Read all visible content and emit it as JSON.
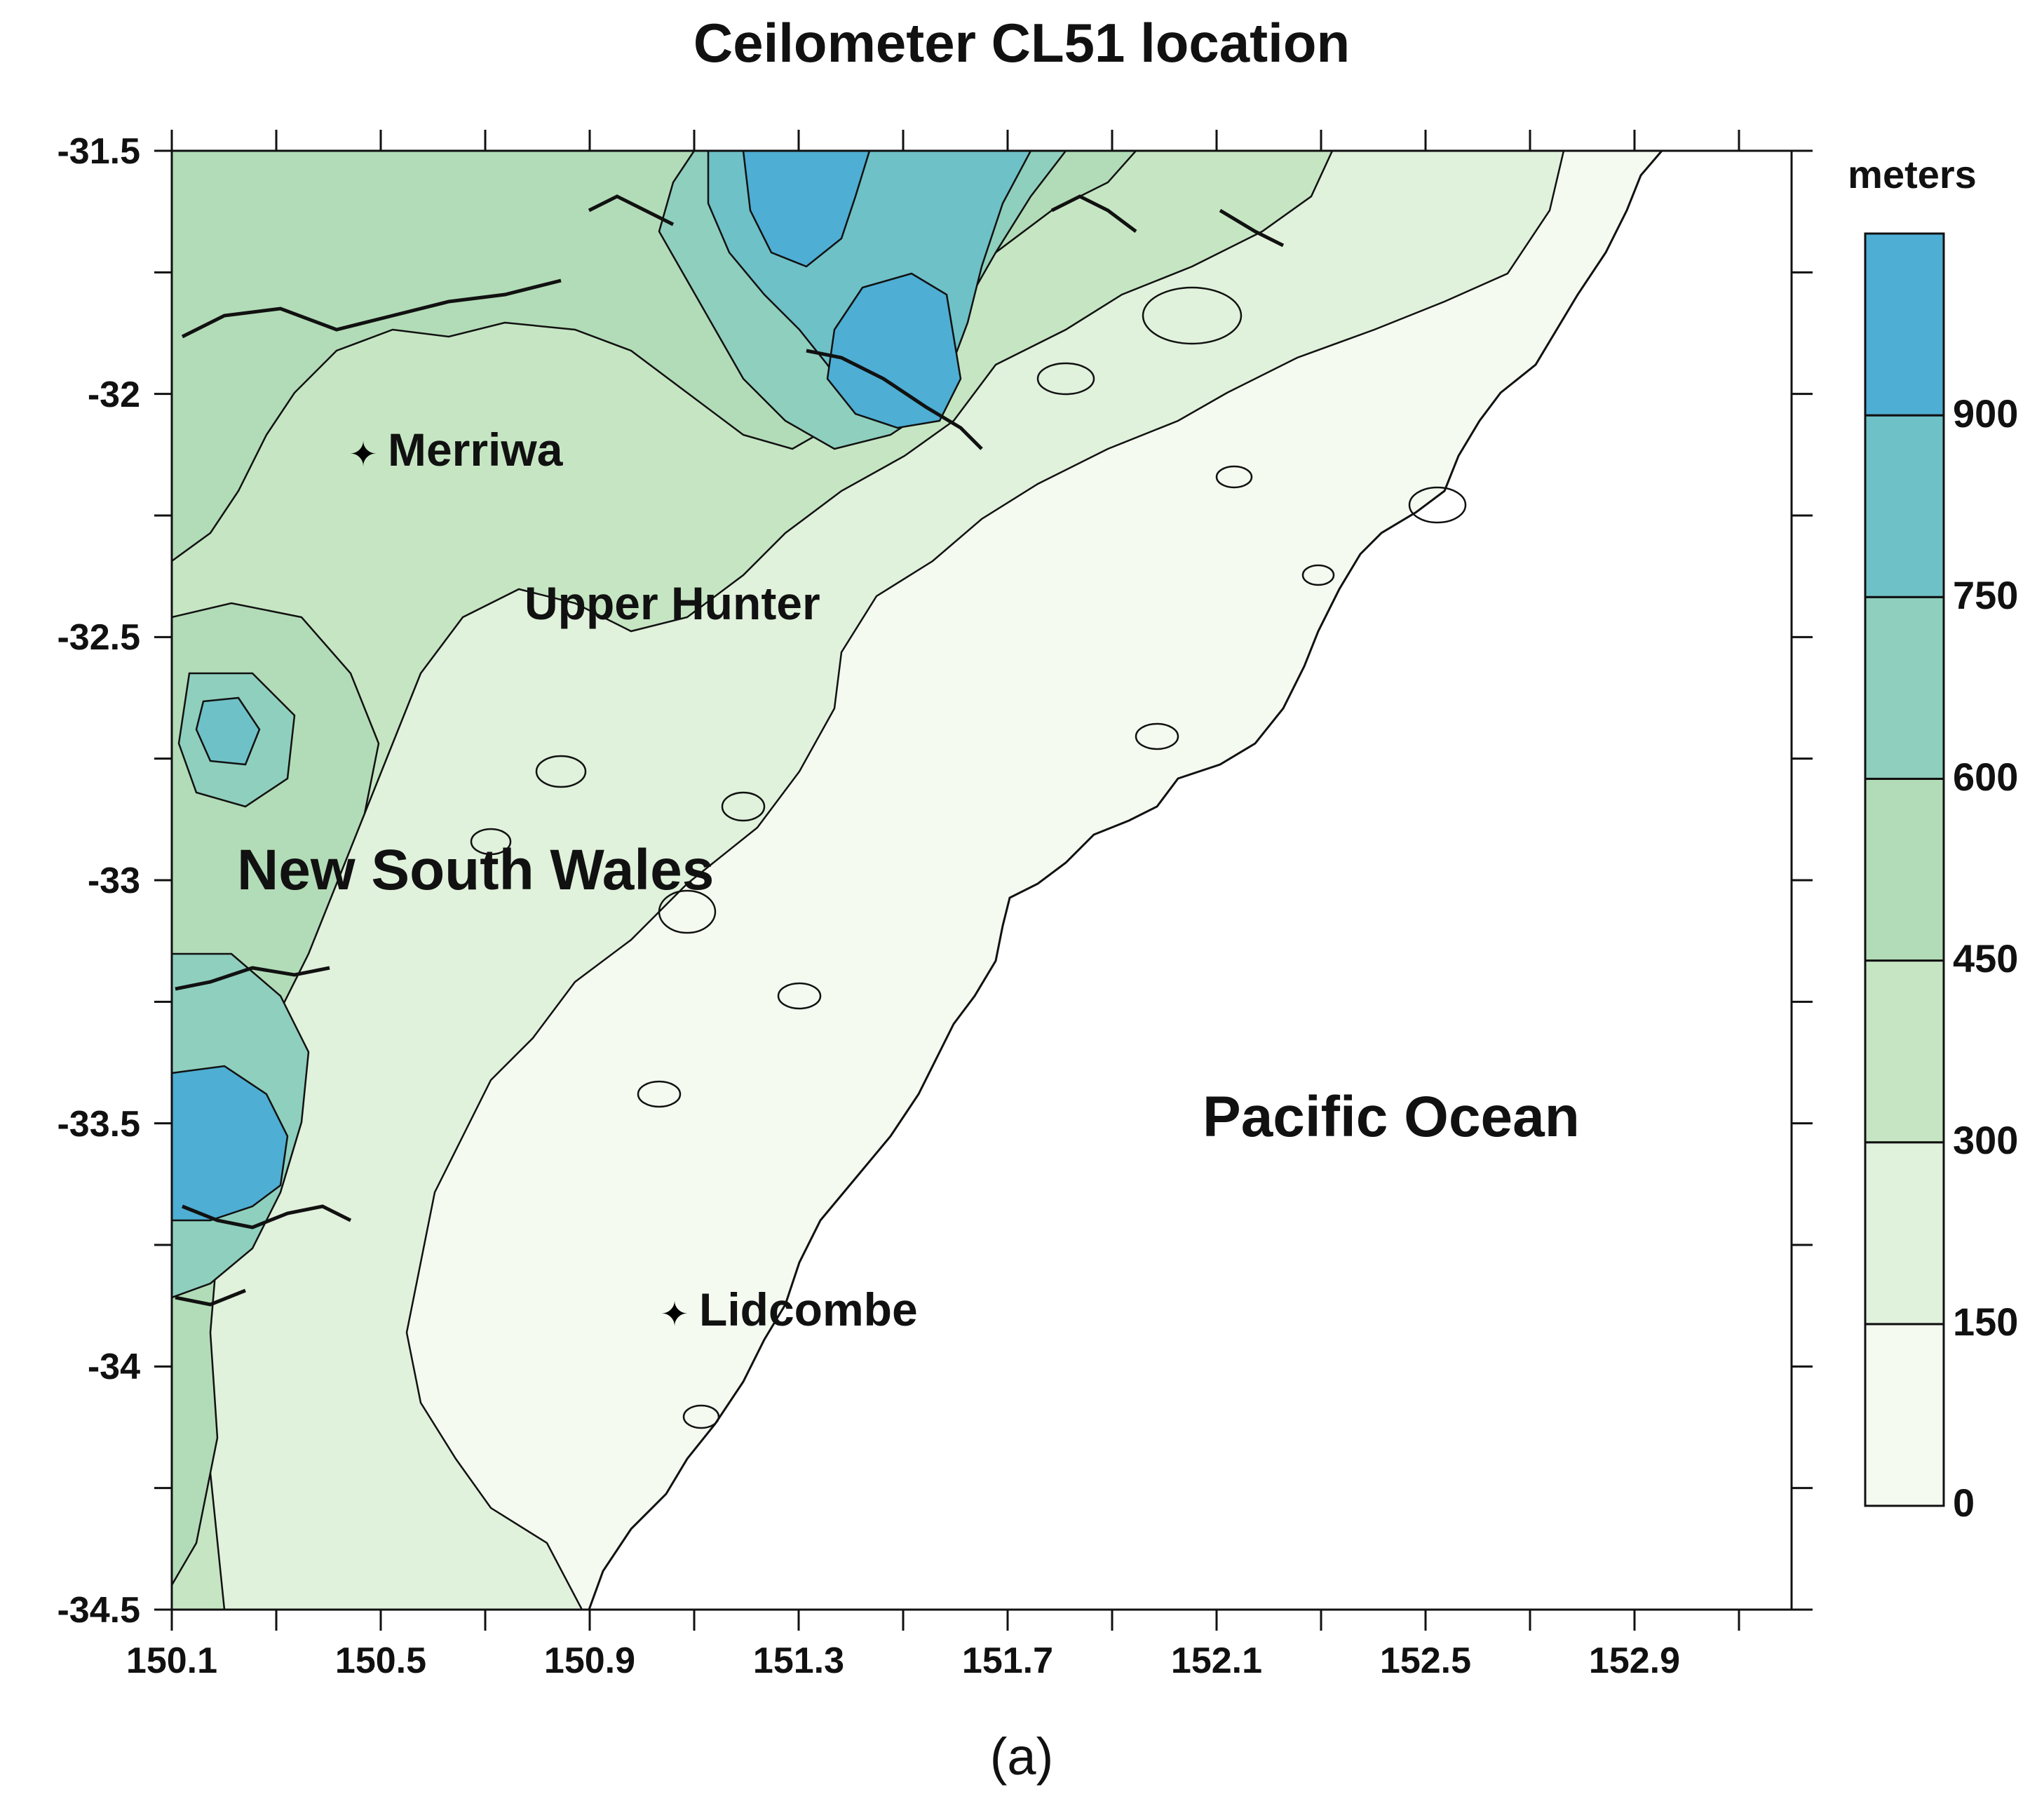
{
  "chart_data": {
    "type": "heatmap",
    "title": "Ceilometer CL51 location",
    "panel_label": "(a)",
    "xlabel": "",
    "ylabel": "",
    "xlim": [
      150.1,
      153.2
    ],
    "ylim": [
      -34.5,
      -31.5
    ],
    "x_ticks": [
      "150.1",
      "150.5",
      "150.9",
      "151.3",
      "151.7",
      "152.1",
      "152.5",
      "152.9"
    ],
    "y_ticks": [
      "-31.5",
      "-32",
      "-32.5",
      "-33",
      "-33.5",
      "-34",
      "-34.5"
    ],
    "colorbar": {
      "title": "meters",
      "levels": [
        "0",
        "150",
        "300",
        "450",
        "600",
        "750",
        "900"
      ],
      "colors": [
        "#f4faf0",
        "#e0f1dc",
        "#c6e6c3",
        "#b2dcb7",
        "#8fcfbd",
        "#6ec1c7",
        "#4eaed3"
      ]
    },
    "sites": [
      {
        "name": "Merriwa",
        "lon": 150.46,
        "lat": -32.12
      },
      {
        "name": "Lidcombe",
        "lon": 151.05,
        "lat": -33.88
      }
    ],
    "region_labels": [
      {
        "text": "Upper Hunter"
      },
      {
        "text": "New South Wales"
      },
      {
        "text": "Pacific Ocean"
      }
    ]
  }
}
